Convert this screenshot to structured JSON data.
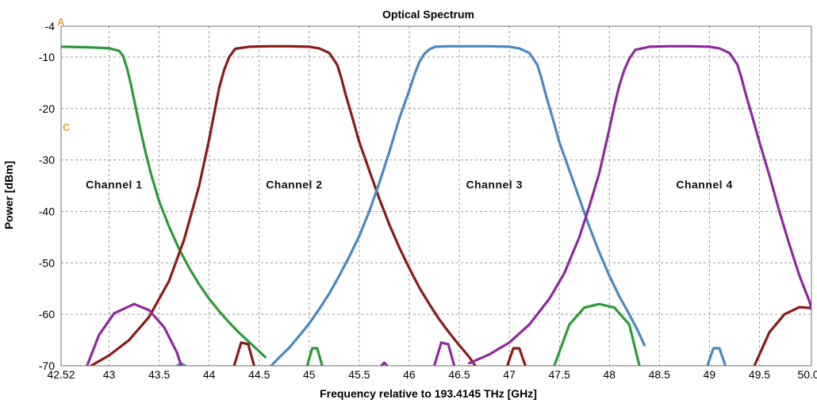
{
  "chart_data": {
    "type": "line",
    "title": "Optical Spectrum",
    "xlabel": "Frequency relative to 193.4145 THz [GHz]",
    "ylabel": "Power [dBm]",
    "xlim": [
      42.52,
      50.02
    ],
    "ylim": [
      -70,
      -4
    ],
    "x_ticks": [
      "42.52",
      "43",
      "43.5",
      "44",
      "44.5",
      "45",
      "45.5",
      "46",
      "46.5",
      "47",
      "47.5",
      "48",
      "48.5",
      "49",
      "49.5",
      "50.02"
    ],
    "y_ticks": [
      "-4",
      "-10",
      "-20",
      "-30",
      "-40",
      "-50",
      "-60",
      "-70"
    ],
    "grid": true,
    "legend": "none",
    "markers": [
      "A",
      "C"
    ],
    "annotations": [
      {
        "text": "Channel 1",
        "x": 43.05,
        "y": -35.5
      },
      {
        "text": "Channel 2",
        "x": 44.85,
        "y": -35.5
      },
      {
        "text": "Channel 3",
        "x": 46.85,
        "y": -35.5
      },
      {
        "text": "Channel 4",
        "x": 48.95,
        "y": -35.5
      }
    ],
    "series": [
      {
        "color": "#2e9a3a",
        "x": [
          42.52,
          42.8,
          43.0,
          43.1,
          43.14,
          43.18,
          43.22,
          43.26,
          43.3,
          43.36,
          43.42,
          43.5,
          43.6,
          43.7,
          43.8,
          43.9,
          44.0,
          44.1,
          44.2,
          44.3,
          44.4,
          44.5,
          44.56
        ],
        "y": [
          -8.0,
          -8.1,
          -8.3,
          -8.8,
          -9.8,
          -12.2,
          -15.5,
          -19.2,
          -23.0,
          -28.2,
          -32.8,
          -38.0,
          -43.0,
          -47.3,
          -51.0,
          -54.2,
          -57.0,
          -59.4,
          -61.6,
          -63.6,
          -65.4,
          -67.2,
          -68.3
        ],
        "lobes": [
          {
            "x": [
              47.45,
              47.6,
              47.75,
              47.9,
              48.05,
              48.2,
              48.3
            ],
            "y": [
              -70,
              -62.0,
              -58.7,
              -58.0,
              -58.7,
              -62.0,
              -70
            ]
          },
          {
            "x": [
              44.98,
              45.03,
              45.08,
              45.13
            ],
            "y": [
              -70,
              -66.6,
              -66.6,
              -70
            ]
          }
        ]
      },
      {
        "color": "#8b1a1a",
        "x": [
          42.82,
          43.0,
          43.2,
          43.4,
          43.6,
          43.75,
          43.9,
          44.0,
          44.05,
          44.1,
          44.15,
          44.2,
          44.26,
          44.4,
          44.6,
          44.8,
          45.0,
          45.1,
          45.2,
          45.28,
          45.32,
          45.36,
          45.42,
          45.5,
          45.6,
          45.7,
          45.8,
          45.9,
          46.0,
          46.1,
          46.2,
          46.3,
          46.4,
          46.5,
          46.6,
          46.66
        ],
        "y": [
          -70,
          -68.0,
          -65.0,
          -60.5,
          -53.5,
          -45.5,
          -35.0,
          -26.0,
          -21.0,
          -16.0,
          -12.5,
          -10.0,
          -8.4,
          -8.0,
          -7.9,
          -7.9,
          -8.0,
          -8.3,
          -9.2,
          -11.5,
          -14.0,
          -17.0,
          -21.0,
          -26.5,
          -32.0,
          -37.5,
          -42.5,
          -47.0,
          -51.0,
          -54.8,
          -58.0,
          -61.0,
          -63.6,
          -66.0,
          -68.3,
          -70
        ],
        "lobes": [
          {
            "x": [
              44.25,
              44.32,
              44.39,
              44.45
            ],
            "y": [
              -70,
              -65.5,
              -65.8,
              -70
            ]
          },
          {
            "x": [
              46.98,
              47.04,
              47.1,
              47.16
            ],
            "y": [
              -70,
              -66.6,
              -66.6,
              -70
            ]
          },
          {
            "x": [
              49.45,
              49.6,
              49.75,
              49.9,
              50.02
            ],
            "y": [
              -70,
              -63.5,
              -60.0,
              -58.6,
              -58.8
            ]
          }
        ]
      },
      {
        "color": "#4b88c0",
        "x": [
          44.62,
          44.7,
          44.8,
          44.9,
          45.0,
          45.1,
          45.2,
          45.3,
          45.4,
          45.5,
          45.6,
          45.7,
          45.8,
          45.9,
          46.0,
          46.05,
          46.1,
          46.15,
          46.2,
          46.26,
          46.4,
          46.6,
          46.8,
          47.0,
          47.1,
          47.2,
          47.28,
          47.32,
          47.36,
          47.42,
          47.5,
          47.6,
          47.7,
          47.8,
          47.9,
          48.0,
          48.1,
          48.2,
          48.28,
          48.35
        ],
        "y": [
          -70,
          -68.4,
          -66.5,
          -64.2,
          -61.8,
          -59.0,
          -56.0,
          -52.5,
          -48.8,
          -44.8,
          -40.0,
          -34.5,
          -28.5,
          -22.0,
          -16.5,
          -13.5,
          -11.0,
          -9.4,
          -8.5,
          -8.0,
          -7.9,
          -7.9,
          -7.9,
          -8.0,
          -8.3,
          -9.2,
          -11.5,
          -14.0,
          -17.0,
          -21.0,
          -26.5,
          -32.0,
          -37.5,
          -43.0,
          -48.0,
          -52.5,
          -56.5,
          -60.0,
          -63.0,
          -66.0
        ],
        "lobes": [
          {
            "x": [
              43.68,
              43.72,
              43.76
            ],
            "y": [
              -70,
              -69.5,
              -70
            ]
          },
          {
            "x": [
              48.98,
              49.04,
              49.1,
              49.16
            ],
            "y": [
              -70,
              -66.6,
              -66.6,
              -70
            ]
          }
        ]
      },
      {
        "color": "#8e2a9e",
        "x": [
          46.6,
          46.8,
          47.0,
          47.2,
          47.4,
          47.55,
          47.7,
          47.8,
          47.9,
          48.0,
          48.05,
          48.1,
          48.15,
          48.2,
          48.26,
          48.4,
          48.6,
          48.8,
          49.0,
          49.1,
          49.2,
          49.28,
          49.32,
          49.36,
          49.42,
          49.5,
          49.6,
          49.7,
          49.8,
          49.9,
          50.0,
          50.02
        ],
        "y": [
          -69.5,
          -67.8,
          -65.5,
          -62.0,
          -57.0,
          -52.0,
          -45.0,
          -39.0,
          -32.5,
          -24.0,
          -19.5,
          -15.5,
          -12.5,
          -10.3,
          -8.6,
          -8.0,
          -7.9,
          -7.9,
          -8.0,
          -8.3,
          -9.2,
          -11.5,
          -14.0,
          -17.0,
          -21.0,
          -26.5,
          -33.0,
          -40.0,
          -46.5,
          -52.5,
          -57.5,
          -59.0
        ],
        "lobes": [
          {
            "x": [
              42.78,
              42.9,
              43.05,
              43.25,
              43.4,
              43.55,
              43.68,
              43.72
            ],
            "y": [
              -70,
              -64.0,
              -59.8,
              -58.0,
              -59.2,
              -62.5,
              -67.5,
              -70
            ]
          },
          {
            "x": [
              46.25,
              46.32,
              46.39,
              46.45
            ],
            "y": [
              -70,
              -65.5,
              -65.8,
              -70
            ]
          },
          {
            "x": [
              45.72,
              45.75,
              45.78
            ],
            "y": [
              -70,
              -69.4,
              -70
            ]
          }
        ]
      }
    ]
  }
}
